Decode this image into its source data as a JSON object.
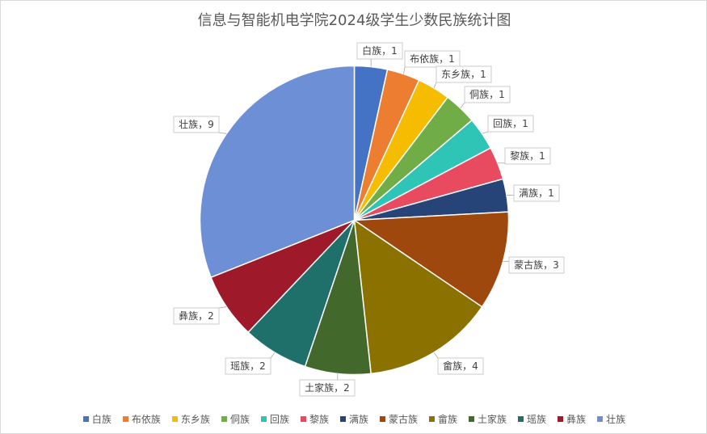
{
  "chart_data": {
    "type": "pie",
    "title": "信息与智能机电学院2024级学生少数民族统计图",
    "categories": [
      "白族",
      "布依族",
      "东乡族",
      "侗族",
      "回族",
      "黎族",
      "满族",
      "蒙古族",
      "畲族",
      "土家族",
      "瑶族",
      "彝族",
      "壮族"
    ],
    "values": [
      1,
      1,
      1,
      1,
      1,
      1,
      1,
      3,
      4,
      2,
      2,
      2,
      9
    ],
    "colors": [
      "#4472c4",
      "#ed7d31",
      "#f5bc00",
      "#70ad47",
      "#2ec4b6",
      "#e84b5f",
      "#264478",
      "#9e480e",
      "#8b7200",
      "#43682b",
      "#1f6f6a",
      "#9e1a2a",
      "#6d8fd6"
    ],
    "data_labels": [
      "白族，1",
      "布依族，1",
      "东乡族，1",
      "侗族，1",
      "回族，1",
      "黎族，1",
      "满族，1",
      "蒙古族，3",
      "畲族，4",
      "土家族，2",
      "瑶族，2",
      "彝族，2",
      "壮族，9"
    ],
    "legend_position": "bottom"
  }
}
